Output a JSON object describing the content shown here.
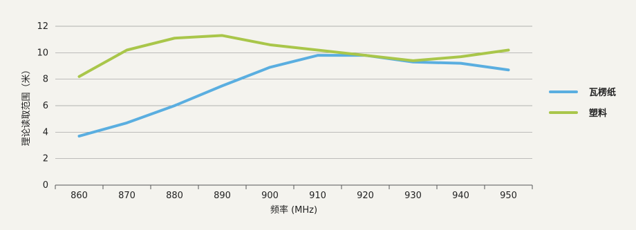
{
  "chart_data": {
    "type": "line",
    "xlabel": "频率 (MHz)",
    "ylabel": "理论读取范围（米）",
    "x": [
      860,
      870,
      880,
      890,
      900,
      910,
      920,
      930,
      940,
      950
    ],
    "xlim": [
      855,
      955
    ],
    "ylim": [
      0,
      12
    ],
    "yticks": [
      0,
      2,
      4,
      6,
      8,
      10,
      12
    ],
    "grid": true,
    "legend_position": "right",
    "series": [
      {
        "name": "瓦楞纸",
        "color": "#5aaee0",
        "values": [
          3.7,
          4.7,
          6.0,
          7.5,
          8.9,
          9.8,
          9.8,
          9.3,
          9.2,
          8.7
        ]
      },
      {
        "name": "塑料",
        "color": "#a9c64a",
        "values": [
          8.2,
          10.2,
          11.1,
          11.3,
          10.6,
          10.2,
          9.8,
          9.4,
          9.7,
          10.2
        ]
      }
    ]
  }
}
